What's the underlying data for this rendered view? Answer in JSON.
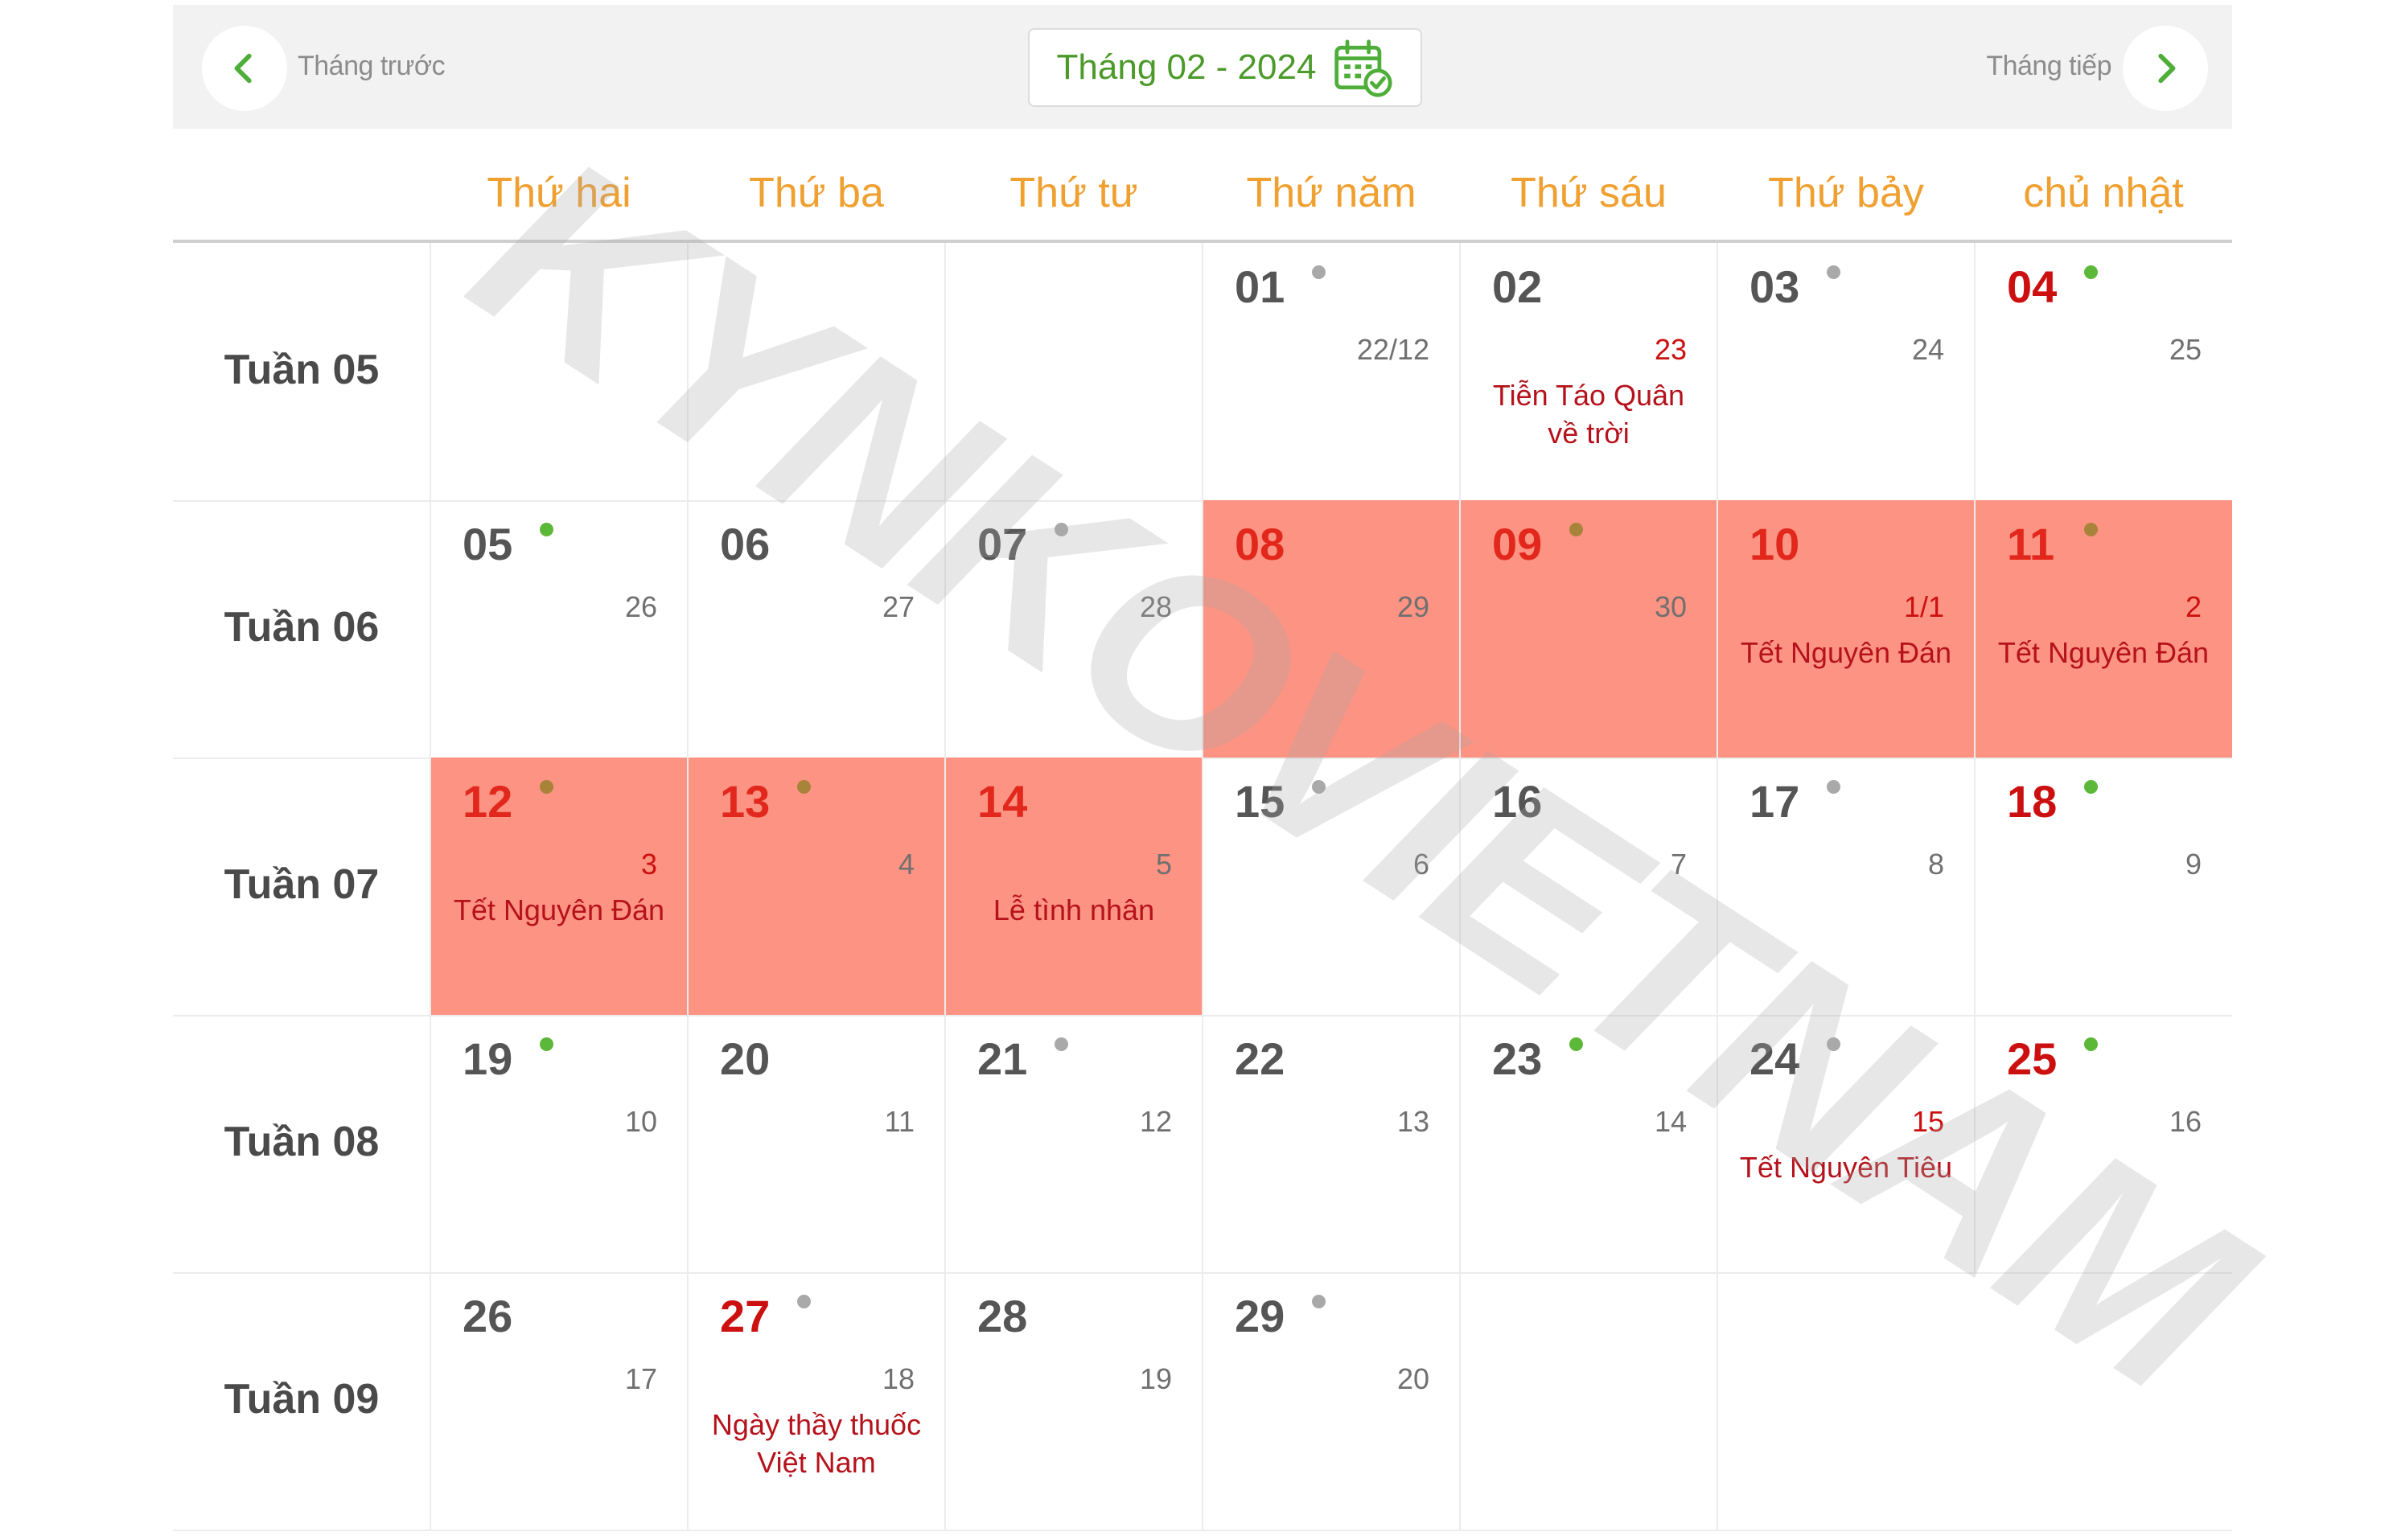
{
  "nav": {
    "prev_label": "Tháng trước",
    "next_label": "Tháng tiếp",
    "month_title": "Tháng 02 - 2024",
    "prev_icon": "chevron-left-icon",
    "next_icon": "chevron-right-icon",
    "calendar_icon": "calendar-check-icon"
  },
  "weekdays": [
    "Thứ hai",
    "Thứ ba",
    "Thứ tư",
    "Thứ năm",
    "Thứ sáu",
    "Thứ bảy",
    "chủ nhật"
  ],
  "weeks": [
    {
      "label": "Tuần 05",
      "days": [
        null,
        null,
        null,
        {
          "day": "01",
          "lunar": "22/12",
          "dot": "gray"
        },
        {
          "day": "02",
          "lunar": "23",
          "lunar_red": true,
          "event": "Tiễn Táo Quân về trời"
        },
        {
          "day": "03",
          "lunar": "24",
          "dot": "gray"
        },
        {
          "day": "04",
          "lunar": "25",
          "dot": "green",
          "red": true
        }
      ]
    },
    {
      "label": "Tuần 06",
      "days": [
        {
          "day": "05",
          "lunar": "26",
          "dot": "green"
        },
        {
          "day": "06",
          "lunar": "27"
        },
        {
          "day": "07",
          "lunar": "28",
          "dot": "gray"
        },
        {
          "day": "08",
          "lunar": "29",
          "highlight": true
        },
        {
          "day": "09",
          "lunar": "30",
          "dot": "gray",
          "highlight": true
        },
        {
          "day": "10",
          "lunar": "1/1",
          "lunar_red": true,
          "event": "Tết Nguyên Đán",
          "highlight": true
        },
        {
          "day": "11",
          "lunar": "2",
          "lunar_red": true,
          "dot": "green",
          "event": "Tết Nguyên Đán",
          "highlight": true
        }
      ]
    },
    {
      "label": "Tuần 07",
      "days": [
        {
          "day": "12",
          "lunar": "3",
          "lunar_red": true,
          "dot": "gray",
          "event": "Tết Nguyên Đán",
          "highlight": true
        },
        {
          "day": "13",
          "lunar": "4",
          "dot": "green",
          "highlight": true
        },
        {
          "day": "14",
          "lunar": "5",
          "event": "Lễ tình nhân",
          "highlight": true
        },
        {
          "day": "15",
          "lunar": "6",
          "dot": "gray"
        },
        {
          "day": "16",
          "lunar": "7"
        },
        {
          "day": "17",
          "lunar": "8",
          "dot": "gray"
        },
        {
          "day": "18",
          "lunar": "9",
          "dot": "green",
          "red": true
        }
      ]
    },
    {
      "label": "Tuần 08",
      "days": [
        {
          "day": "19",
          "lunar": "10",
          "dot": "green"
        },
        {
          "day": "20",
          "lunar": "11"
        },
        {
          "day": "21",
          "lunar": "12",
          "dot": "gray"
        },
        {
          "day": "22",
          "lunar": "13"
        },
        {
          "day": "23",
          "lunar": "14",
          "dot": "green"
        },
        {
          "day": "24",
          "lunar": "15",
          "lunar_red": true,
          "dot": "gray",
          "event": "Tết Nguyên Tiêu"
        },
        {
          "day": "25",
          "lunar": "16",
          "dot": "green",
          "red": true
        }
      ]
    },
    {
      "label": "Tuần 09",
      "days": [
        {
          "day": "26",
          "lunar": "17"
        },
        {
          "day": "27",
          "lunar": "18",
          "dot": "gray",
          "red": true,
          "event": "Ngày thầy thuốc Việt Nam"
        },
        {
          "day": "28",
          "lunar": "19"
        },
        {
          "day": "29",
          "lunar": "20",
          "dot": "gray"
        },
        null,
        null,
        null
      ]
    }
  ],
  "colors": {
    "accent_green": "#4c9a2a",
    "weekday_orange": "#f0a030",
    "highlight_red": "#fd9382",
    "holiday_red": "#cc1010",
    "event_red": "#b5121b"
  },
  "watermark": "KYNKOVIETNAM"
}
